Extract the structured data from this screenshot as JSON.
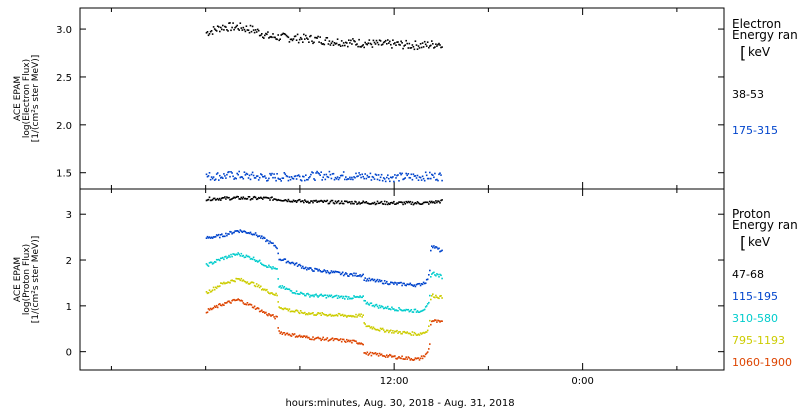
{
  "chart_data": [
    {
      "type": "scatter",
      "ylabel_lines": [
        "ACE EPAM",
        "log(Electron Flux)",
        "[1/(cm²s ster MeV)]"
      ],
      "ylim": [
        1.33,
        3.22
      ],
      "yticks": [
        1.5,
        2.0,
        2.5,
        3.0
      ],
      "ytick_labels": [
        "1.5",
        "2.0",
        "2.5",
        "3.0"
      ],
      "legend_title_lines": [
        "Electron",
        "Energy ran"
      ],
      "legend_unit": "keV",
      "series": [
        {
          "name": "38-53",
          "color": "#000000",
          "x": [
            0.0,
            1.0,
            2.0,
            3.0,
            4.0,
            5.0,
            6.0,
            7.0,
            8.0,
            9.0,
            10.0,
            11.0,
            12.0,
            13.0,
            14.0,
            15.0
          ],
          "y": [
            2.97,
            3.03,
            3.03,
            3.0,
            2.93,
            2.92,
            2.91,
            2.9,
            2.88,
            2.87,
            2.86,
            2.85,
            2.85,
            2.84,
            2.84,
            2.86
          ]
        },
        {
          "name": "175-315",
          "color": "#0044cc",
          "x": [
            0.0,
            2.0,
            4.0,
            6.0,
            8.0,
            10.0,
            12.0,
            14.0,
            15.0
          ],
          "y": [
            1.47,
            1.48,
            1.46,
            1.47,
            1.48,
            1.47,
            1.46,
            1.47,
            1.47
          ]
        }
      ]
    },
    {
      "type": "scatter",
      "ylabel_lines": [
        "ACE EPAM",
        "log(Proton Flux)",
        "[1/(cm²s ster MeV)]"
      ],
      "ylim": [
        -0.4,
        3.55
      ],
      "yticks": [
        0,
        1,
        2,
        3
      ],
      "ytick_labels": [
        "0",
        "1",
        "2",
        "3"
      ],
      "legend_title_lines": [
        "Proton",
        "Energy ran"
      ],
      "legend_unit": "keV",
      "series": [
        {
          "name": "47-68",
          "color": "#000000",
          "x": [
            0.0,
            2.0,
            4.0,
            6.0,
            8.0,
            10.0,
            12.0,
            14.0,
            15.0
          ],
          "y": [
            3.35,
            3.37,
            3.36,
            3.3,
            3.28,
            3.27,
            3.26,
            3.26,
            3.3
          ]
        },
        {
          "name": "115-195",
          "color": "#0044cc",
          "x": [
            0.0,
            1.0,
            2.0,
            3.0,
            3.8,
            4.5,
            4.6,
            5.5,
            6.5,
            8.0,
            9.0,
            10.0,
            10.05,
            11.0,
            12.0,
            13.5,
            14.0,
            14.2,
            14.3,
            15.0
          ],
          "y": [
            2.5,
            2.55,
            2.66,
            2.6,
            2.45,
            2.3,
            2.05,
            1.95,
            1.82,
            1.75,
            1.7,
            1.69,
            1.6,
            1.55,
            1.5,
            1.47,
            1.55,
            1.7,
            2.35,
            2.2
          ]
        },
        {
          "name": "310-580",
          "color": "#00cccc",
          "x": [
            0.0,
            1.0,
            2.0,
            3.0,
            3.8,
            4.5,
            4.6,
            5.5,
            6.5,
            8.0,
            9.0,
            10.0,
            10.05,
            11.0,
            12.0,
            13.5,
            14.0,
            14.2,
            14.3,
            15.0
          ],
          "y": [
            1.9,
            2.05,
            2.15,
            2.05,
            1.9,
            1.8,
            1.45,
            1.33,
            1.25,
            1.22,
            1.2,
            1.2,
            1.1,
            1.0,
            0.95,
            0.9,
            0.97,
            1.1,
            1.75,
            1.65
          ]
        },
        {
          "name": "795-1193",
          "color": "#cccc00",
          "x": [
            0.0,
            1.0,
            2.0,
            3.0,
            3.8,
            4.5,
            4.6,
            5.5,
            6.5,
            8.0,
            9.0,
            10.0,
            10.05,
            11.0,
            12.0,
            13.5,
            14.0,
            14.2,
            14.3,
            15.0
          ],
          "y": [
            1.3,
            1.5,
            1.6,
            1.5,
            1.35,
            1.25,
            1.0,
            0.9,
            0.85,
            0.82,
            0.8,
            0.8,
            0.6,
            0.5,
            0.45,
            0.4,
            0.45,
            0.6,
            1.25,
            1.2
          ]
        },
        {
          "name": "1060-1900",
          "color": "#dd4400",
          "x": [
            0.0,
            1.0,
            2.0,
            3.0,
            3.8,
            4.5,
            4.6,
            5.5,
            6.5,
            8.0,
            9.0,
            10.0,
            10.05,
            11.0,
            12.0,
            13.5,
            14.0,
            14.2,
            14.3,
            15.0
          ],
          "y": [
            0.9,
            1.05,
            1.15,
            1.0,
            0.85,
            0.75,
            0.45,
            0.38,
            0.32,
            0.28,
            0.25,
            0.2,
            -0.02,
            -0.05,
            -0.1,
            -0.15,
            -0.05,
            0.1,
            0.7,
            0.65
          ]
        }
      ]
    }
  ],
  "x_axis": {
    "xlim": [
      -8.0,
      33.0
    ],
    "major_ticks": [
      12,
      24
    ],
    "tick_labels": [
      "12:00",
      "0:00"
    ],
    "minor_ticks": [
      -6,
      0,
      6,
      18,
      30
    ],
    "label": "hours:minutes, Aug. 30, 2018 - Aug. 31, 2018"
  },
  "colors": {
    "black": "#000000",
    "blue": "#0044cc",
    "cyan": "#00cccc",
    "yellow": "#cccc00",
    "orange": "#dd4400"
  }
}
